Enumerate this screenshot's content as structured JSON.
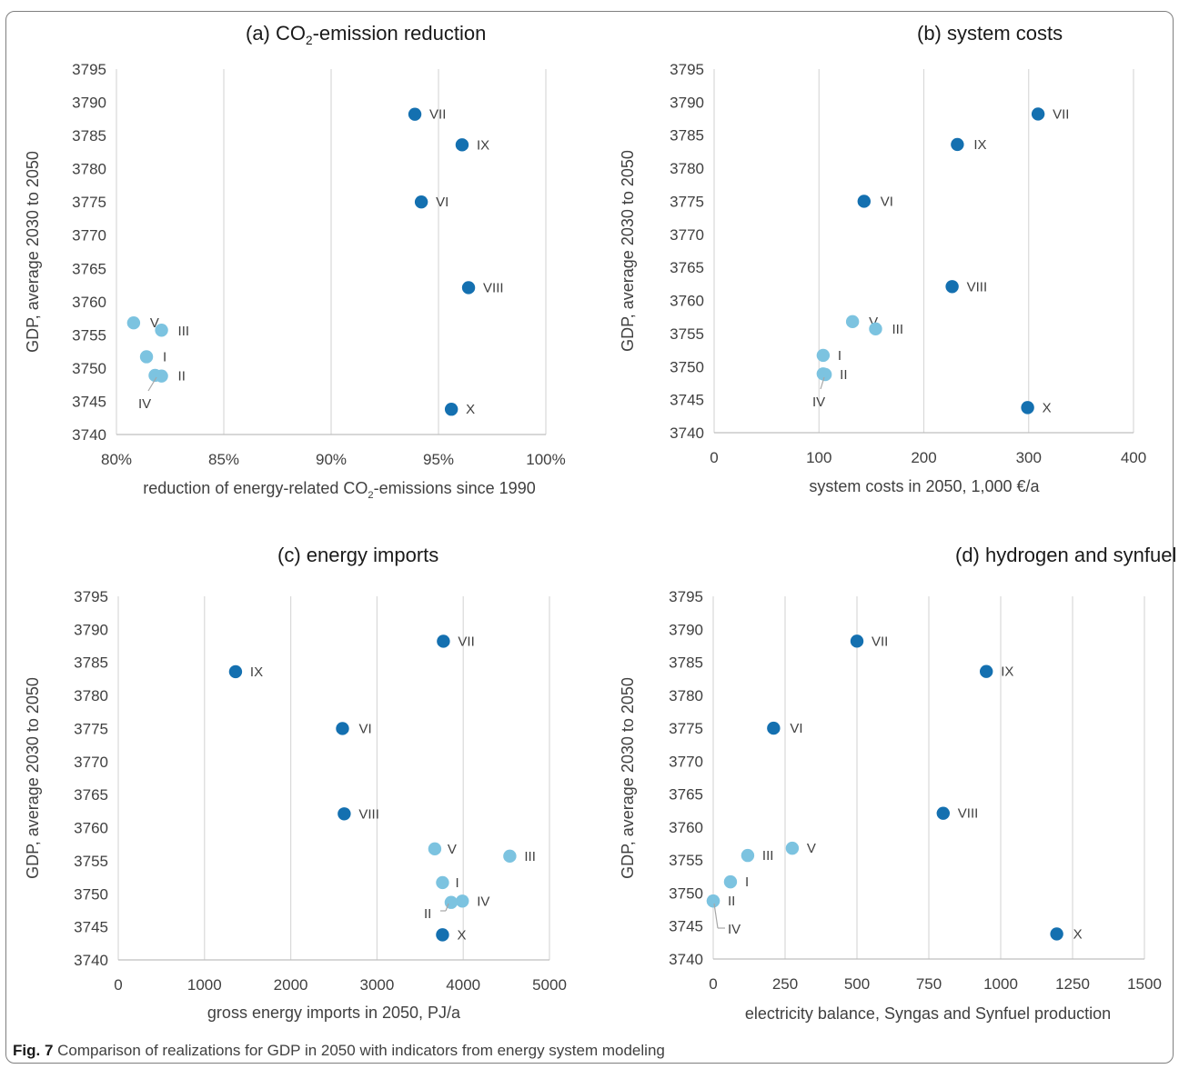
{
  "caption": {
    "label": "Fig. 7",
    "text": "Comparison of realizations for GDP in 2050 with indicators from energy system modeling"
  },
  "colors": {
    "dark": "#1470b0",
    "light": "#7cc3e0",
    "grid": "#d9d9d9",
    "text": "#404040"
  },
  "chart_data": [
    {
      "type": "scatter",
      "panel": "(a)",
      "title_parts": [
        "CO",
        "2",
        "-emission reduction"
      ],
      "xlabel_parts": [
        "reduction of energy-related CO",
        "2",
        "-emissions since 1990"
      ],
      "ylabel": "GDP, average 2030 to 2050",
      "xlim": [
        80,
        100
      ],
      "xticks": [
        80,
        85,
        90,
        95,
        100
      ],
      "xtick_labels": [
        "80%",
        "85%",
        "90%",
        "95%",
        "100%"
      ],
      "ylim": [
        3740,
        3795
      ],
      "yticks": [
        3740,
        3745,
        3750,
        3755,
        3760,
        3765,
        3770,
        3775,
        3780,
        3785,
        3790,
        3795
      ],
      "grid": "vertical",
      "points": [
        {
          "label": "VII",
          "x": 93.9,
          "y": 3788.2,
          "color": "dark"
        },
        {
          "label": "IX",
          "x": 96.1,
          "y": 3783.6,
          "color": "dark"
        },
        {
          "label": "VI",
          "x": 94.2,
          "y": 3775.0,
          "color": "dark"
        },
        {
          "label": "VIII",
          "x": 96.4,
          "y": 3762.1,
          "color": "dark"
        },
        {
          "label": "X",
          "x": 95.6,
          "y": 3743.8,
          "color": "dark"
        },
        {
          "label": "V",
          "x": 80.8,
          "y": 3756.8,
          "color": "light"
        },
        {
          "label": "III",
          "x": 82.1,
          "y": 3755.7,
          "color": "light"
        },
        {
          "label": "I",
          "x": 81.4,
          "y": 3751.7,
          "color": "light"
        },
        {
          "label": "II",
          "x": 82.1,
          "y": 3748.8,
          "color": "light"
        },
        {
          "label": "IV",
          "x": 81.8,
          "y": 3748.9,
          "color": "light"
        }
      ]
    },
    {
      "type": "scatter",
      "panel": "(b)",
      "title_parts": [
        "system costs"
      ],
      "xlabel_parts": [
        "system costs in 2050, 1,000 €/a"
      ],
      "ylabel": "GDP, average 2030 to 2050",
      "xlim": [
        0,
        400
      ],
      "xticks": [
        0,
        100,
        200,
        300,
        400
      ],
      "xtick_labels": [
        "0",
        "100",
        "200",
        "300",
        "400"
      ],
      "ylim": [
        3740,
        3795
      ],
      "yticks": [
        3740,
        3745,
        3750,
        3755,
        3760,
        3765,
        3770,
        3775,
        3780,
        3785,
        3790,
        3795
      ],
      "grid": "vertical",
      "points": [
        {
          "label": "VII",
          "x": 309,
          "y": 3788.2,
          "color": "dark"
        },
        {
          "label": "IX",
          "x": 232,
          "y": 3783.6,
          "color": "dark"
        },
        {
          "label": "VI",
          "x": 143,
          "y": 3775.0,
          "color": "dark"
        },
        {
          "label": "VIII",
          "x": 227,
          "y": 3762.1,
          "color": "dark"
        },
        {
          "label": "X",
          "x": 299,
          "y": 3743.8,
          "color": "dark"
        },
        {
          "label": "V",
          "x": 132,
          "y": 3756.8,
          "color": "light"
        },
        {
          "label": "III",
          "x": 154,
          "y": 3755.7,
          "color": "light"
        },
        {
          "label": "I",
          "x": 104,
          "y": 3751.7,
          "color": "light"
        },
        {
          "label": "II",
          "x": 106,
          "y": 3748.8,
          "color": "light"
        },
        {
          "label": "IV",
          "x": 104,
          "y": 3748.9,
          "color": "light"
        }
      ]
    },
    {
      "type": "scatter",
      "panel": "(c)",
      "title_parts": [
        "energy imports"
      ],
      "xlabel_parts": [
        "gross energy imports in 2050, PJ/a"
      ],
      "ylabel": "GDP, average 2030 to 2050",
      "xlim": [
        0,
        5000
      ],
      "xticks": [
        0,
        1000,
        2000,
        3000,
        4000,
        5000
      ],
      "xtick_labels": [
        "0",
        "1000",
        "2000",
        "3000",
        "4000",
        "5000"
      ],
      "ylim": [
        3740,
        3795
      ],
      "yticks": [
        3740,
        3745,
        3750,
        3755,
        3760,
        3765,
        3770,
        3775,
        3780,
        3785,
        3790,
        3795
      ],
      "grid": "vertical",
      "points": [
        {
          "label": "VII",
          "x": 3770,
          "y": 3788.2,
          "color": "dark"
        },
        {
          "label": "IX",
          "x": 1360,
          "y": 3783.6,
          "color": "dark"
        },
        {
          "label": "VI",
          "x": 2600,
          "y": 3775.0,
          "color": "dark"
        },
        {
          "label": "VIII",
          "x": 2620,
          "y": 3762.1,
          "color": "dark"
        },
        {
          "label": "X",
          "x": 3760,
          "y": 3743.8,
          "color": "dark"
        },
        {
          "label": "V",
          "x": 3670,
          "y": 3756.8,
          "color": "light"
        },
        {
          "label": "III",
          "x": 4540,
          "y": 3755.7,
          "color": "light"
        },
        {
          "label": "I",
          "x": 3760,
          "y": 3751.7,
          "color": "light"
        },
        {
          "label": "IV",
          "x": 3990,
          "y": 3748.9,
          "color": "light"
        },
        {
          "label": "II",
          "x": 3860,
          "y": 3748.7,
          "color": "light"
        }
      ]
    },
    {
      "type": "scatter",
      "panel": "(d)",
      "title_parts": [
        "hydrogen and synfuel demand"
      ],
      "xlabel_parts": [
        "electricity balance, Syngas and Synfuel production"
      ],
      "ylabel": "GDP, average 2030 to 2050",
      "xlim": [
        0,
        1500
      ],
      "xticks": [
        0,
        250,
        500,
        750,
        1000,
        1250,
        1500
      ],
      "xtick_labels": [
        "0",
        "250",
        "500",
        "750",
        "1000",
        "1250",
        "1500"
      ],
      "ylim": [
        3740,
        3795
      ],
      "yticks": [
        3740,
        3745,
        3750,
        3755,
        3760,
        3765,
        3770,
        3775,
        3780,
        3785,
        3790,
        3795
      ],
      "grid": "vertical",
      "points": [
        {
          "label": "VII",
          "x": 500,
          "y": 3788.2,
          "color": "dark"
        },
        {
          "label": "IX",
          "x": 950,
          "y": 3783.6,
          "color": "dark"
        },
        {
          "label": "VI",
          "x": 210,
          "y": 3775.0,
          "color": "dark"
        },
        {
          "label": "VIII",
          "x": 800,
          "y": 3762.1,
          "color": "dark"
        },
        {
          "label": "X",
          "x": 1195,
          "y": 3743.8,
          "color": "dark"
        },
        {
          "label": "V",
          "x": 275,
          "y": 3756.8,
          "color": "light"
        },
        {
          "label": "III",
          "x": 120,
          "y": 3755.7,
          "color": "light"
        },
        {
          "label": "I",
          "x": 60,
          "y": 3751.7,
          "color": "light"
        },
        {
          "label": "II",
          "x": 0,
          "y": 3748.8,
          "color": "light"
        },
        {
          "label": "IV",
          "x": 0,
          "y": 3748.8,
          "color": "light"
        }
      ]
    }
  ]
}
